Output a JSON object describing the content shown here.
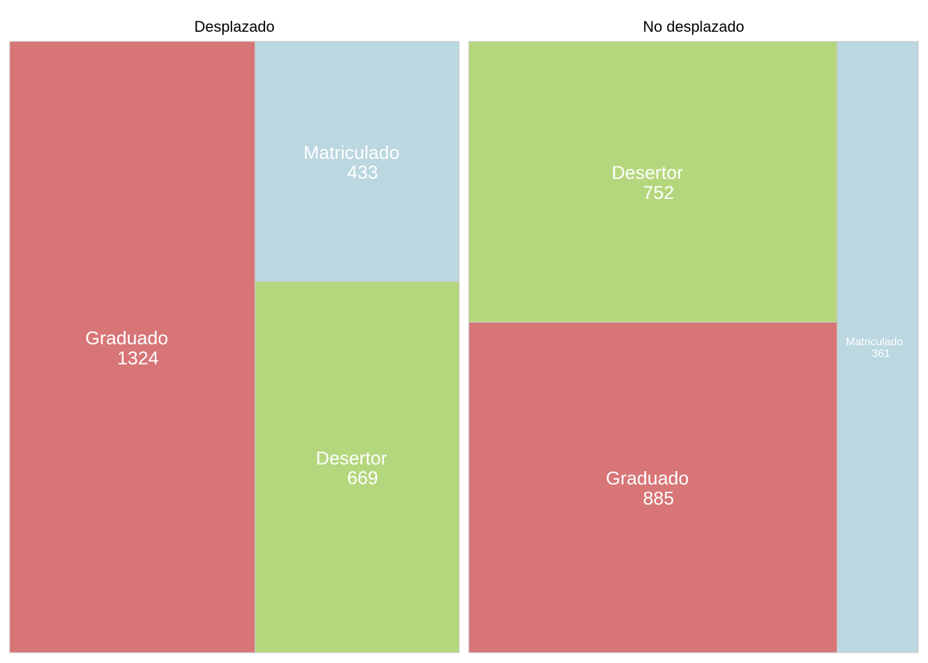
{
  "chart_data": {
    "type": "treemap",
    "colors": {
      "Graduado": "#d77577",
      "Matriculado": "#bbd7df",
      "Desertor": "#b4d77d"
    },
    "border_color": "#c8c8c8",
    "panels": [
      {
        "title": "Desplazado",
        "tiles": [
          {
            "category": "Graduado",
            "value": 1324,
            "value_label": "1324"
          },
          {
            "category": "Matriculado",
            "value": 433,
            "value_label": "433"
          },
          {
            "category": "Desertor",
            "value": 669,
            "value_label": "669"
          }
        ]
      },
      {
        "title": "No desplazado",
        "tiles": [
          {
            "category": "Desertor",
            "value": 752,
            "value_label": "752"
          },
          {
            "category": "Graduado",
            "value": 885,
            "value_label": "885"
          },
          {
            "category": "Matriculado",
            "value": 361,
            "value_label": "361"
          }
        ]
      }
    ]
  }
}
